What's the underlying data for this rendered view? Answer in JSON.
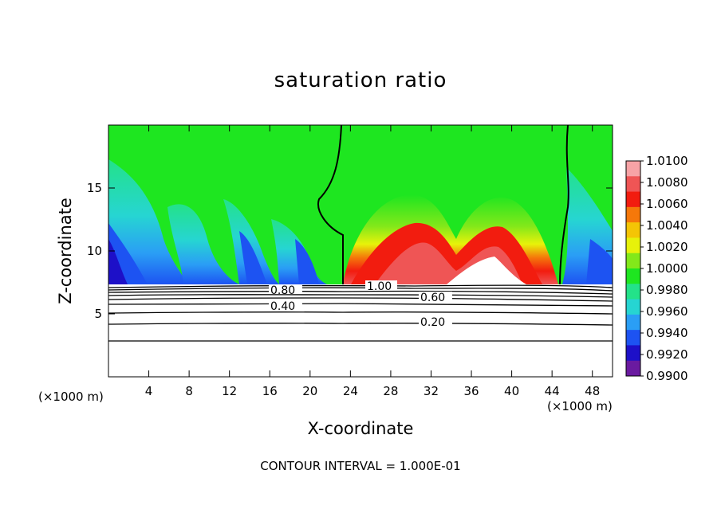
{
  "title": "saturation ratio",
  "footer": "CONTOUR INTERVAL = 1.000E-01",
  "chart_data": {
    "type": "heatmap",
    "title": "saturation ratio",
    "xlabel": "X-coordinate",
    "ylabel": "Z-coordinate",
    "x_unit_label": "(×1000 m)",
    "xlim": [
      0,
      50
    ],
    "ylim": [
      0,
      20
    ],
    "xticks": [
      "4",
      "8",
      "12",
      "16",
      "20",
      "24",
      "28",
      "32",
      "36",
      "40",
      "44",
      "48"
    ],
    "yticks": [
      "5",
      "10",
      "15"
    ],
    "colorbar": {
      "levels": [
        "1.0100",
        "1.0080",
        "1.0060",
        "1.0040",
        "1.0020",
        "1.0000",
        "0.9980",
        "0.9960",
        "0.9940",
        "0.9920",
        "0.9900"
      ],
      "colors": [
        "#f7a3a6",
        "#ef5555",
        "#f21c0f",
        "#f5780a",
        "#f4c505",
        "#e7f20a",
        "#82e81a",
        "#1ee620",
        "#23e289",
        "#26d5d2",
        "#2a9ef5",
        "#1d53f2",
        "#1d10c8",
        "#6a1aa0"
      ]
    },
    "contour_labels": [
      {
        "text": "0.80",
        "x": 16.5,
        "z": 7.1
      },
      {
        "text": "0.40",
        "x": 16.5,
        "z": 5.6
      },
      {
        "text": "1.00",
        "x": 26.5,
        "z": 7.5
      },
      {
        "text": "0.60",
        "x": 31.2,
        "z": 6.2
      },
      {
        "text": "0.20",
        "x": 31.2,
        "z": 4.2
      }
    ],
    "field_notes": "supersaturated (>1.0) region between x~23 and x~45 above the boundary layer top (~7.5), subsaturated elsewhere"
  }
}
